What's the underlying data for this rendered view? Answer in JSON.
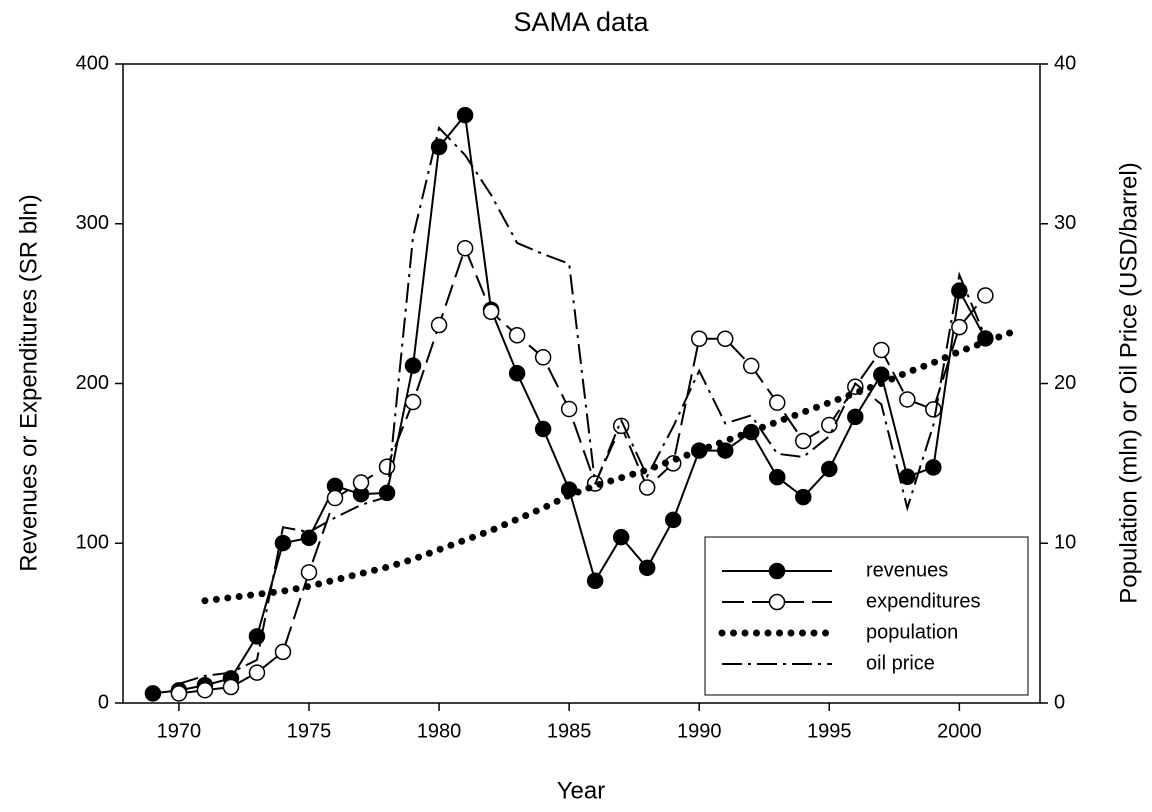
{
  "chart_data": {
    "type": "line",
    "title": "SAMA data",
    "x_label": "Year",
    "y_label": "Revenues or Expenditures (SR bln)",
    "y2_label": "Population (mln) or Oil Price (USD/barrel)",
    "x": [
      1969,
      1970,
      1971,
      1972,
      1973,
      1974,
      1975,
      1976,
      1977,
      1978,
      1979,
      1980,
      1981,
      1982,
      1983,
      1984,
      1985,
      1986,
      1987,
      1988,
      1989,
      1990,
      1991,
      1992,
      1993,
      1994,
      1995,
      1996,
      1997,
      1998,
      1999,
      2000,
      2001,
      2002
    ],
    "xlim": [
      1967.85,
      2003.1
    ],
    "xticks": [
      1970,
      1975,
      1980,
      1985,
      1990,
      1995,
      2000
    ],
    "ylim": [
      0,
      400
    ],
    "yticks": [
      0,
      100,
      200,
      300,
      400
    ],
    "y2lim": [
      0,
      40
    ],
    "y2ticks": [
      0,
      10,
      20,
      30,
      40
    ],
    "legend": "lower right",
    "series": [
      {
        "name": "revenues",
        "color": "#000000",
        "line_style": "solid",
        "marker": "filled-circle",
        "values": [
          6,
          7.9,
          11.1,
          15.4,
          41.7,
          100.1,
          103.4,
          135.9,
          130.7,
          131.5,
          211.2,
          348.1,
          368.0,
          246.2,
          206.4,
          171.5,
          133.6,
          76.5,
          103.8,
          84.6,
          114.6,
          158,
          158,
          169.6,
          141.4,
          128.9,
          146.5,
          179.1,
          205.5,
          141.6,
          147.5,
          258.1,
          228.2,
          null
        ]
      },
      {
        "name": "expenditures",
        "color": "#000000",
        "line_style": "dashed",
        "marker": "open-circle",
        "values": [
          null,
          6,
          8,
          10,
          19,
          32,
          81.8,
          128.3,
          138.0,
          147.9,
          188.4,
          236.6,
          284.7,
          244.9,
          230.2,
          216.4,
          184.0,
          137.4,
          173.5,
          134.9,
          150.0,
          228,
          228,
          211,
          188,
          164,
          174,
          198,
          221,
          190,
          183.8,
          235.3,
          255.1,
          null
        ]
      },
      {
        "name": "population",
        "color": "#000000",
        "line_style": "dotted",
        "marker": "none",
        "axis": "y2",
        "values": [
          null,
          null,
          6.4,
          6.6,
          6.8,
          7.0,
          7.3,
          7.7,
          8.1,
          8.5,
          9.0,
          9.6,
          10.2,
          10.8,
          11.5,
          12.2,
          13.0,
          13.6,
          14.1,
          14.6,
          15.2,
          15.8,
          16.4,
          17.0,
          17.6,
          18.2,
          18.8,
          19.4,
          20.0,
          20.7,
          21.3,
          22.0,
          22.6,
          23.2
        ]
      },
      {
        "name": "oil price",
        "color": "#000000",
        "line_style": "dashdot",
        "marker": "none",
        "axis": "y2",
        "values": [
          null,
          1.2,
          1.7,
          1.9,
          2.7,
          11.0,
          10.7,
          11.6,
          12.4,
          12.9,
          29.2,
          36.0,
          34.3,
          31.8,
          28.8,
          28.1,
          27.5,
          13.7,
          17.7,
          14.2,
          17.3,
          20.8,
          17.5,
          18.0,
          15.6,
          15.4,
          16.7,
          20.0,
          18.7,
          12.2,
          17.4,
          26.8,
          22.9,
          null
        ]
      }
    ]
  }
}
